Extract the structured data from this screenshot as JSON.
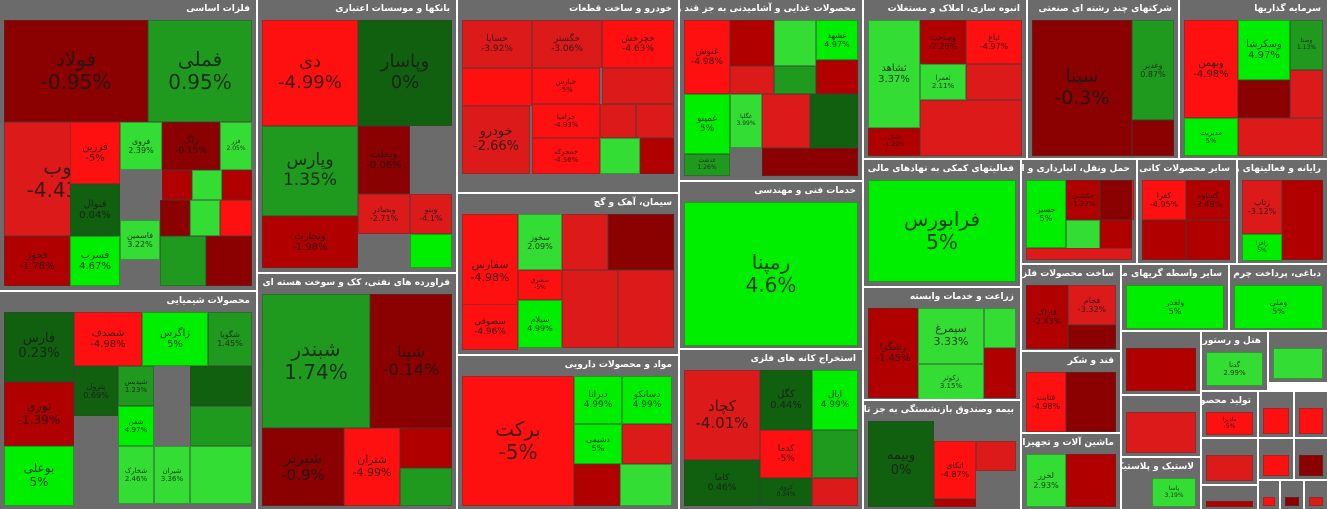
{
  "colors": {
    "up_strong": "#00ee00",
    "up": "#33dd33",
    "up_mid": "#1f9a1f",
    "up_dark": "#106010",
    "down_dark": "#8b0000",
    "down_mid": "#b00000",
    "down": "#dd1a1a",
    "down_strong": "#ff1010",
    "sector_bg": "#6b6b6b",
    "title_text": "#ffffff"
  },
  "chart_data": {
    "type": "treemap",
    "sectors": [
      {
        "name": "فلزات اساسی",
        "tiles": [
          {
            "symbol": "فولاد",
            "change": "-0.95%",
            "value": -0.95
          },
          {
            "symbol": "فملی",
            "change": "0.95%",
            "value": 0.95
          },
          {
            "symbol": "ذوب",
            "change": "-4.43%",
            "value": -4.43
          },
          {
            "symbol": "فزرین",
            "change": "-5%",
            "value": -5
          },
          {
            "symbol": "فروی",
            "change": "2.39%",
            "value": 2.39
          },
          {
            "symbol": "زاگ",
            "change": "-0.15%",
            "value": -0.15
          },
          {
            "symbol": "فزر",
            "change": "2.05%",
            "value": 2.05
          },
          {
            "symbol": "فخوز",
            "change": "-1.78%",
            "value": -1.78
          },
          {
            "symbol": "فنوال",
            "change": "0.04%",
            "value": 0.04
          },
          {
            "symbol": "فسرب",
            "change": "4.67%",
            "value": 4.67
          },
          {
            "symbol": "فاسمین",
            "change": "3.22%",
            "value": 3.22
          }
        ]
      },
      {
        "name": "محصولات شیمیایی",
        "tiles": [
          {
            "symbol": "فارس",
            "change": "0.23%",
            "value": 0.23
          },
          {
            "symbol": "شصدف",
            "change": "-4.98%",
            "value": -4.98
          },
          {
            "symbol": "زاگرس",
            "change": "5%",
            "value": 5
          },
          {
            "symbol": "شگویا",
            "change": "1.45%",
            "value": 1.45
          },
          {
            "symbol": "پترول",
            "change": "0.69%",
            "value": 0.69
          },
          {
            "symbol": "نوری",
            "change": "-1.39%",
            "value": -1.39
          },
          {
            "symbol": "بوعلی",
            "change": "5%",
            "value": 5
          },
          {
            "symbol": "شپدیس",
            "change": "1.23%",
            "value": 1.23
          },
          {
            "symbol": "شفن",
            "change": "4.97%",
            "value": 4.97
          },
          {
            "symbol": "شخارک",
            "change": "2.46%",
            "value": 2.46
          },
          {
            "symbol": "شیران",
            "change": "3.36%",
            "value": 3.36
          }
        ]
      },
      {
        "name": "بانکها و موسسات اعتباری",
        "tiles": [
          {
            "symbol": "دی",
            "change": "-4.99%",
            "value": -4.99
          },
          {
            "symbol": "وپاسار",
            "change": "0%",
            "value": 0
          },
          {
            "symbol": "وپارس",
            "change": "1.35%",
            "value": 1.35
          },
          {
            "symbol": "وبملت",
            "change": "-0.06%",
            "value": -0.06
          },
          {
            "symbol": "وتجارت",
            "change": "-1.98%",
            "value": -1.98
          },
          {
            "symbol": "وبصادر",
            "change": "-2.71%",
            "value": -2.71
          },
          {
            "symbol": "وبنو",
            "change": "-4.1%",
            "value": -4.1
          }
        ]
      },
      {
        "name": "فراورده های نفتی، کک و سوخت هسته ای",
        "tiles": [
          {
            "symbol": "شبندر",
            "change": "1.74%",
            "value": 1.74
          },
          {
            "symbol": "شپنا",
            "change": "-0.14%",
            "value": -0.14
          },
          {
            "symbol": "شبریز",
            "change": "-0.9%",
            "value": -0.9
          },
          {
            "symbol": "شتران",
            "change": "-4.99%",
            "value": -4.99
          }
        ]
      },
      {
        "name": "خودرو و ساخت قطعات",
        "tiles": [
          {
            "symbol": "خساپا",
            "change": "-3.92%",
            "value": -3.92
          },
          {
            "symbol": "خگستر",
            "change": "-3.06%",
            "value": -3.06
          },
          {
            "symbol": "خودرو",
            "change": "-2.66%",
            "value": -2.66
          },
          {
            "symbol": "خچرخش",
            "change": "-4.63%",
            "value": -4.63
          },
          {
            "symbol": "خپارس",
            "change": "-5%",
            "value": -5
          },
          {
            "symbol": "خزامیا",
            "change": "-4.93%",
            "value": -4.93
          },
          {
            "symbol": "خمحرکه",
            "change": "-4.56%",
            "value": -4.56
          }
        ]
      },
      {
        "name": "سیمان، آهک و گچ",
        "tiles": [
          {
            "symbol": "سفارس",
            "change": "-4.98%",
            "value": -4.98
          },
          {
            "symbol": "سخوز",
            "change": "2.09%",
            "value": 2.09
          },
          {
            "symbol": "سصوفی",
            "change": "-4.96%",
            "value": -4.96
          },
          {
            "symbol": "سیلام",
            "change": "4.99%",
            "value": 4.99
          },
          {
            "symbol": "سشرق",
            "change": "-5%",
            "value": -5
          }
        ]
      },
      {
        "name": "مواد و محصولات دارویی",
        "tiles": [
          {
            "symbol": "برکت",
            "change": "-5%",
            "value": -5
          },
          {
            "symbol": "دبرانا",
            "change": "4.99%",
            "value": 4.99
          },
          {
            "symbol": "دسانکو",
            "change": "4.99%",
            "value": 4.99
          },
          {
            "symbol": "دشیمی",
            "change": "5%",
            "value": 5
          }
        ]
      },
      {
        "name": "محصولات غذایی و آشامیدنی به جز قند و شکر",
        "tiles": [
          {
            "symbol": "غنوش",
            "change": "-4.98%",
            "value": -4.98
          },
          {
            "symbol": "غشهد",
            "change": "4.97%",
            "value": 4.97
          },
          {
            "symbol": "غمینو",
            "change": "5%",
            "value": 5
          },
          {
            "symbol": "غگلپا",
            "change": "3.99%",
            "value": 3.99
          },
          {
            "symbol": "غدشت",
            "change": "1.26%",
            "value": 1.26
          }
        ]
      },
      {
        "name": "خدمات فنی و مهندسی",
        "tiles": [
          {
            "symbol": "رمپنا",
            "change": "4.6%",
            "value": 4.6
          }
        ]
      },
      {
        "name": "استخراج کانه های فلزی",
        "tiles": [
          {
            "symbol": "کچاد",
            "change": "-4.01%",
            "value": -4.01
          },
          {
            "symbol": "کگل",
            "change": "0.44%",
            "value": 0.44
          },
          {
            "symbol": "اپال",
            "change": "4.99%",
            "value": 4.99
          },
          {
            "symbol": "کدما",
            "change": "-5%",
            "value": -5
          },
          {
            "symbol": "کاما",
            "change": "0.46%",
            "value": 0.46
          },
          {
            "symbol": "کروی",
            "change": "0.24%",
            "value": 0.24
          }
        ]
      },
      {
        "name": "انبوه سازی، املاک و مستغلات",
        "tiles": [
          {
            "symbol": "ثشاهد",
            "change": "3.37%",
            "value": 3.37
          },
          {
            "symbol": "ثامان",
            "change": "-1.29%",
            "value": -1.29
          },
          {
            "symbol": "ثعمرا",
            "change": "2.11%",
            "value": 2.11
          },
          {
            "symbol": "وساخت",
            "change": "-2.28%",
            "value": -2.28
          },
          {
            "symbol": "ثباغ",
            "change": "-4.97%",
            "value": -4.97
          }
        ]
      },
      {
        "name": "فعالیتهای کمکی به نهادهای مالی واسط",
        "tiles": [
          {
            "symbol": "فرابورس",
            "change": "5%",
            "value": 5
          }
        ]
      },
      {
        "name": "زراعت و خدمات وابسته",
        "tiles": [
          {
            "symbol": "سیمرغ",
            "change": "3.33%",
            "value": 3.33
          },
          {
            "symbol": "زکوثر",
            "change": "3.15%",
            "value": 3.15
          },
          {
            "symbol": "زشگزا",
            "change": "-1.45%",
            "value": -1.45
          }
        ]
      },
      {
        "name": "بیمه وصندوق بازنشستگی به جز تامین اجتماعی",
        "tiles": [
          {
            "symbol": "وبیمه",
            "change": "0%",
            "value": 0
          },
          {
            "symbol": "اتکای",
            "change": "-4.87%",
            "value": -4.87
          }
        ]
      },
      {
        "name": "شرکتهای چند رشته ای صنعتی",
        "tiles": [
          {
            "symbol": "سپنا",
            "change": "-0.3%",
            "value": -0.3
          },
          {
            "symbol": "وغدیر",
            "change": "0.87%",
            "value": 0.87
          }
        ]
      },
      {
        "name": "سرمایه گذاریها",
        "tiles": [
          {
            "symbol": "وبهمن",
            "change": "-4.98%",
            "value": -4.98
          },
          {
            "symbol": "وسکرشا",
            "change": "4.97%",
            "value": 4.97
          },
          {
            "symbol": "وصنا",
            "change": "1.13%",
            "value": 1.13
          },
          {
            "symbol": "مدیریت",
            "change": "5%",
            "value": 5
          }
        ]
      },
      {
        "name": "حمل ونقل، انبارداری و ارتباطات",
        "tiles": [
          {
            "symbol": "حسیر",
            "change": "5%",
            "value": 5
          },
          {
            "symbol": "حکشتی",
            "change": "-1.22%",
            "value": -1.22
          },
          {
            "symbol": "حریل",
            "change": "-4.19%",
            "value": -4.19
          }
        ]
      },
      {
        "name": "سایر محصولات کانی غیرفلزی",
        "tiles": [
          {
            "symbol": "کفرا",
            "change": "-4.95%",
            "value": -4.95
          },
          {
            "symbol": "کساوه",
            "change": "-2.48%",
            "value": -2.48
          }
        ]
      },
      {
        "name": "رایانه و فعالیتهای وابسته به آن",
        "tiles": [
          {
            "symbol": "رتاپ",
            "change": "-3.12%",
            "value": -3.12
          },
          {
            "symbol": "رافزا",
            "change": "5%",
            "value": 5
          }
        ]
      },
      {
        "name": "ساخت محصولات فلزی",
        "tiles": [
          {
            "symbol": "فاراک",
            "change": "-2.43%",
            "value": -2.43
          },
          {
            "symbol": "فجام",
            "change": "-3.32%",
            "value": -3.32
          }
        ]
      },
      {
        "name": "سایر واسطه گریهای مالی",
        "tiles": [
          {
            "symbol": "ولغدر",
            "change": "5%",
            "value": 5
          }
        ]
      },
      {
        "name": "دباغی، پرداخت چرم",
        "tiles": [
          {
            "symbol": "وملی",
            "change": "5%",
            "value": 5
          }
        ]
      },
      {
        "name": "قند و شکر",
        "tiles": [
          {
            "symbol": "قثابت",
            "change": "-4.98%",
            "value": -4.98
          }
        ]
      },
      {
        "name": "ماشین آلات و تجهیزات",
        "tiles": [
          {
            "symbol": "لخزر",
            "change": "2.93%",
            "value": 2.93
          }
        ]
      },
      {
        "name": "لاستیک و پلاستیک",
        "tiles": [
          {
            "symbol": "پاسا",
            "change": "3.19%",
            "value": 3.19
          }
        ]
      },
      {
        "name": "هتل و رستوران",
        "tiles": [
          {
            "symbol": "گدنا",
            "change": "2.99%",
            "value": 2.99
          }
        ]
      },
      {
        "name": "تولید محصولات کامپیوتری الکترونیکی",
        "tiles": [
          {
            "symbol": "مادیرا",
            "change": "-5%",
            "value": -5
          }
        ]
      }
    ]
  }
}
